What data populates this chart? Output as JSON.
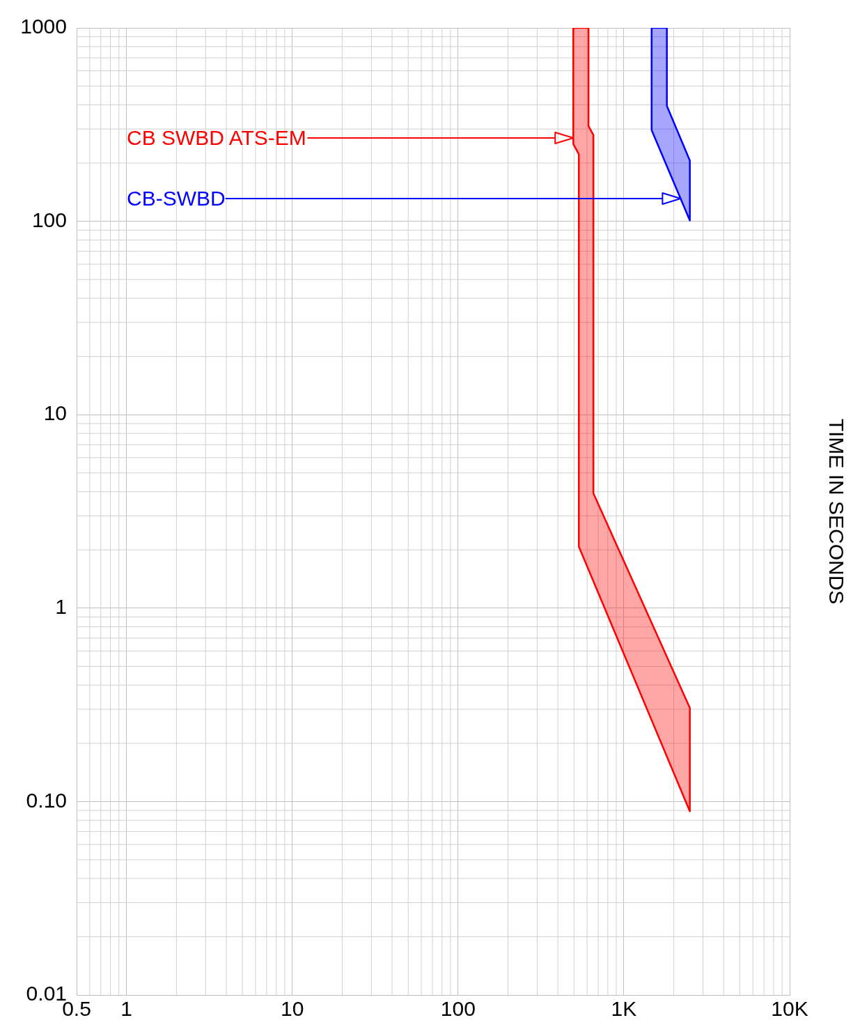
{
  "chart_data": {
    "type": "area",
    "ylabel": "TIME IN SECONDS",
    "log": "xy",
    "grid": true,
    "legend": false,
    "line_style": "solid",
    "marker": "none",
    "xlim": [
      0.5,
      10000
    ],
    "xticks": [
      0.5,
      1,
      10,
      100,
      {
        "value": 1000,
        "label": "1K"
      },
      {
        "value": 10000,
        "label": "10K"
      }
    ],
    "ylim": [
      0.01,
      1000
    ],
    "yticks": [
      0.01,
      {
        "value": 0.1,
        "label": "0.10"
      },
      1,
      10,
      100,
      1000
    ],
    "series": [
      {
        "color": "#ff0000",
        "x": [
          495,
          495,
          535,
          535,
          2500,
          2500,
          655,
          655,
          612,
          612,
          495
        ],
        "values": [
          1000,
          251,
          222,
          2.08,
          0.089,
          0.305,
          3.92,
          279,
          311,
          1000,
          1000
        ]
      },
      {
        "color": "#0000ff",
        "x": [
          1470,
          1470,
          2500,
          2500,
          1817,
          1817,
          1470
        ],
        "values": [
          1000,
          296,
          101,
          206,
          395,
          1000,
          1000
        ]
      }
    ],
    "annotations": [
      "CB SWBD ATS-EM",
      "CB-SWBD"
    ]
  }
}
